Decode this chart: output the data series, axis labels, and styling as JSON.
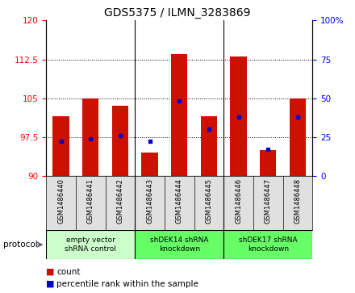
{
  "title": "GDS5375 / ILMN_3283869",
  "samples": [
    "GSM1486440",
    "GSM1486441",
    "GSM1486442",
    "GSM1486443",
    "GSM1486444",
    "GSM1486445",
    "GSM1486446",
    "GSM1486447",
    "GSM1486448"
  ],
  "bar_bottom": 90,
  "bar_tops": [
    101.5,
    105.0,
    103.5,
    94.5,
    113.5,
    101.5,
    113.0,
    95.0,
    105.0
  ],
  "percentile_values": [
    22,
    24,
    26,
    22,
    48,
    30,
    38,
    17,
    38
  ],
  "ylim_left": [
    90,
    120
  ],
  "ylim_right": [
    0,
    100
  ],
  "yticks_left": [
    90,
    97.5,
    105,
    112.5,
    120
  ],
  "yticks_right": [
    0,
    25,
    50,
    75,
    100
  ],
  "bar_color": "#cc1100",
  "dot_color": "#0000cc",
  "protocol_groups": [
    {
      "label": "empty vector\nshRNA control",
      "start": 0,
      "end": 3,
      "color": "#ccffcc"
    },
    {
      "label": "shDEK14 shRNA\nknockdown",
      "start": 3,
      "end": 6,
      "color": "#66ff66"
    },
    {
      "label": "shDEK17 shRNA\nknockdown",
      "start": 6,
      "end": 9,
      "color": "#66ff66"
    }
  ],
  "title_fontsize": 10,
  "tick_fontsize": 7.5,
  "label_fontsize": 7,
  "bar_width": 0.55,
  "protocol_label": "protocol"
}
